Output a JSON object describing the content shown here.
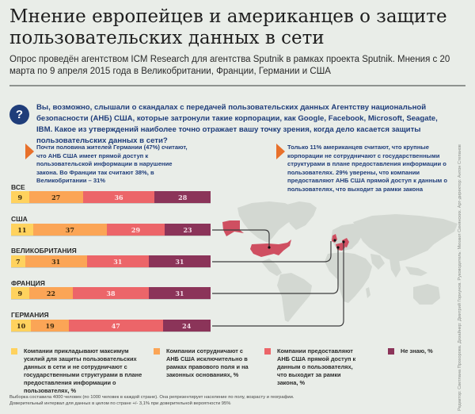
{
  "header": {
    "title": "Мнение европейцев и американцев о защите пользовательских данных в сети",
    "subtitle": "Опрос проведён агентством ICM Research для агентства Sputnik в рамках проекта Sputnik. Мнения с 20 марта по 9 апреля 2015 года в Великобритании, Франции, Германии и США"
  },
  "question": {
    "icon": "question-mark-icon",
    "icon_text": "?",
    "text": "Вы, возможно, слышали о скандалах с передачей пользовательских данных Агентству национальной безопасности (АНБ) США, которые затронули такие корпорации, как Google, Facebook, Microsoft, Seagate, IBM. Какое из утверждений наиболее точно отражает вашу точку зрения, когда дело касается защиты пользовательских данных в сети?"
  },
  "notes": [
    {
      "text": "Почти половина жителей Германии (47%) считают, что АНБ США имеет прямой доступ к пользовательской информации в нарушение закона. Во Франции так считают 38%, в Великобритании – 31%"
    },
    {
      "text": "Только 11% американцев считают, что крупные корпорации не сотрудничают с государственными структурами в плане предоставления информации о пользователях. 29% уверены, что компании предоставляют АНБ США прямой доступ к данным о пользователях, что выходит за рамки закона"
    }
  ],
  "colors": {
    "protect": "#ffd25e",
    "legal": "#fba556",
    "direct": "#ec6569",
    "dontknow": "#8b3459",
    "accent": "#e8702a",
    "question": "#1f3d7a",
    "map_land": "#d3d8d2",
    "map_highlight": "#cf4f61"
  },
  "chart_data": {
    "type": "bar",
    "orientation": "horizontal-stacked",
    "unit": "%",
    "categories": [
      "ВСЕ",
      "США",
      "ВЕЛИКОБРИТАНИЯ",
      "ФРАНЦИЯ",
      "ГЕРМАНИЯ"
    ],
    "series": [
      {
        "name": "Компании прикладывают максимум усилий для защиты пользовательских данных в сети и не сотрудничают с государственными структурами в плане предоставления информации о пользователях, %",
        "values": [
          9,
          11,
          7,
          9,
          10
        ]
      },
      {
        "name": "Компании сотрудничают с АНБ США исключительно в рамках правового поля и на законных основаниях, %",
        "values": [
          27,
          37,
          31,
          22,
          19
        ]
      },
      {
        "name": "Компании предоставляют АНБ США прямой доступ к данным о пользователях, что выходит за рамки закона, %",
        "values": [
          36,
          29,
          31,
          38,
          47
        ]
      },
      {
        "name": "Не знаю, %",
        "values": [
          28,
          23,
          31,
          31,
          24
        ]
      }
    ],
    "xlim": [
      0,
      100
    ],
    "legend_position": "bottom"
  },
  "footer": {
    "line1": "Выборка составила 4000 человек (по 1000 человек в каждой стране). Она репрезентирует население по полу, возрасту и географии.",
    "line2": "Доверительный интервал для данных в целом по стране +/- 3,1% при доверительной вероятности 95%"
  },
  "credits": "Редактор: Светлана Прохорова. Дизайнер: Дмитрий Горнунов. Руководитель: Михаил Синянских. Арт-директор: Антон Степанов"
}
